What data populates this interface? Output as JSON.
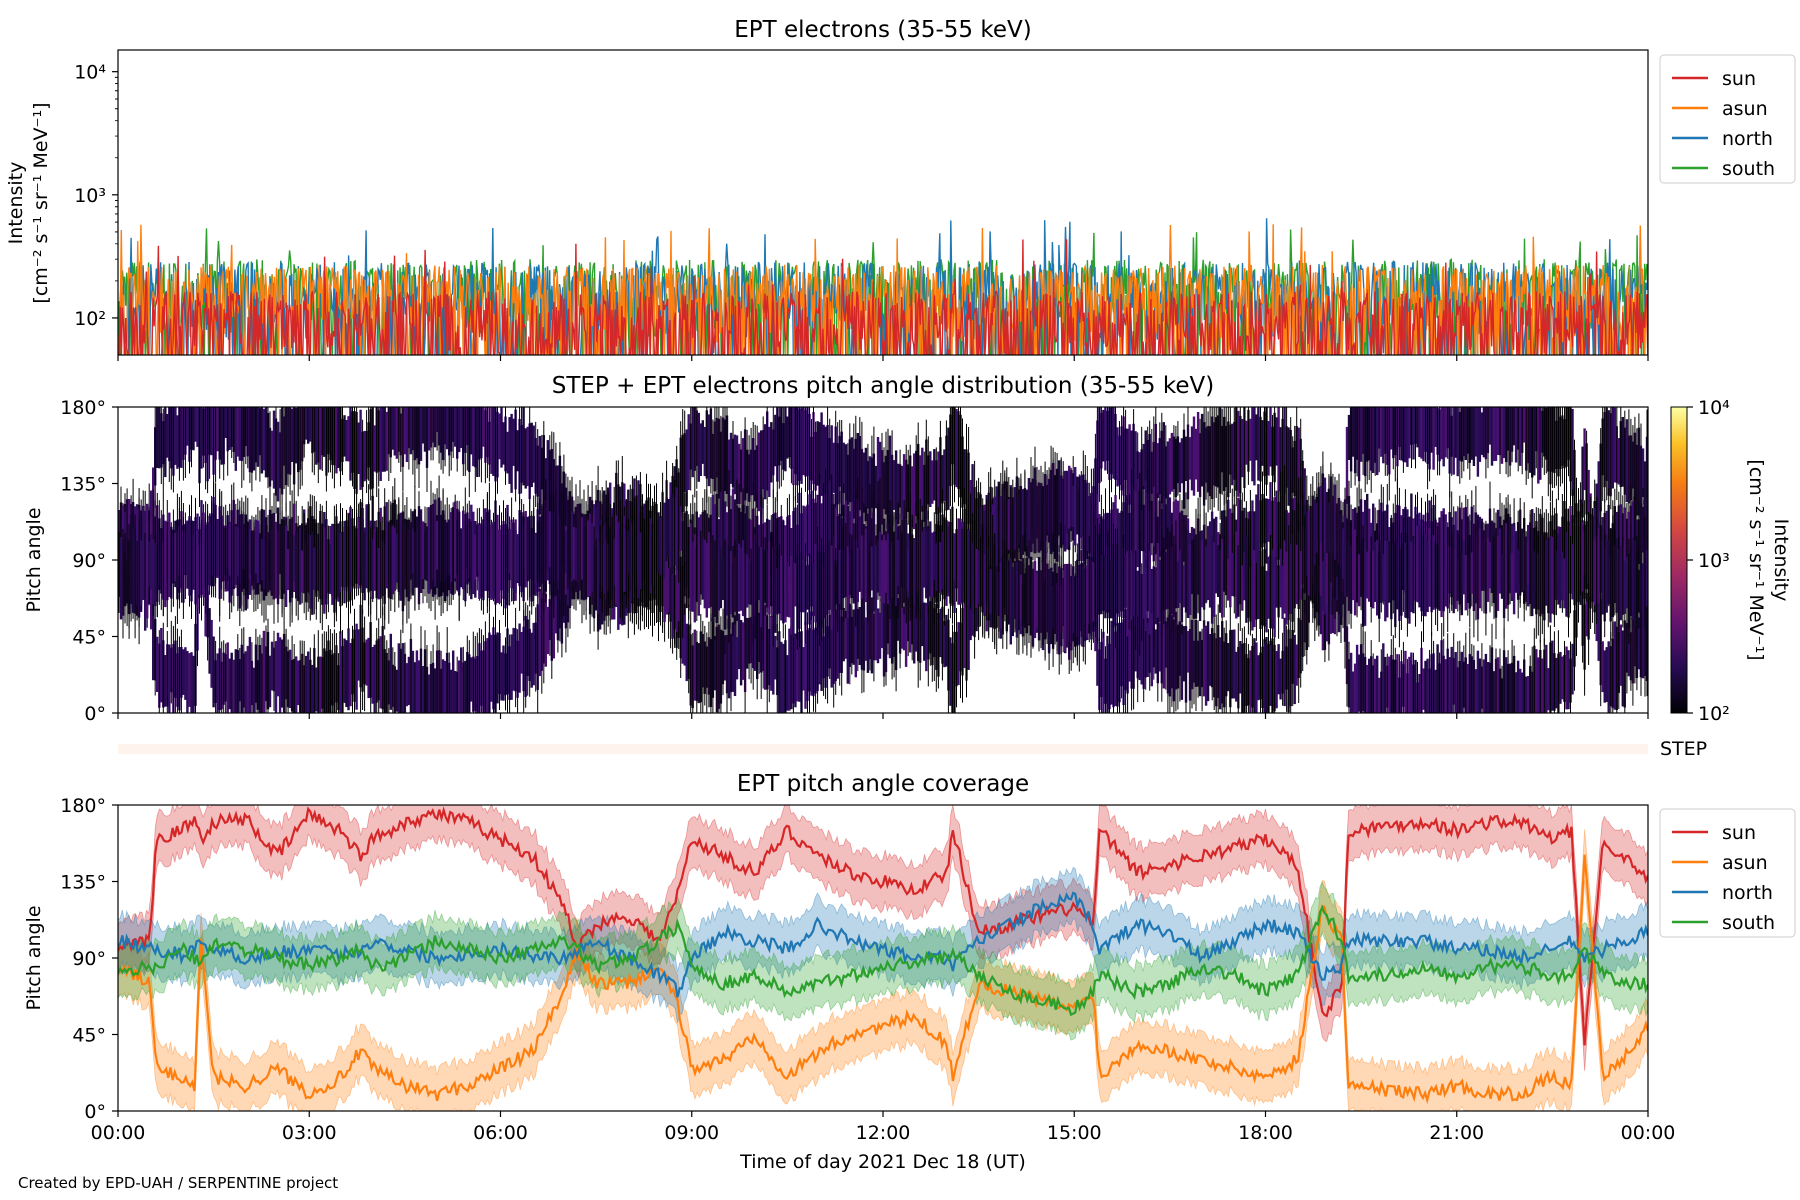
{
  "figure": {
    "credit": "Created by EPD-UAH / SERPENTINE project",
    "xlabel": "Time of day 2021 Dec 18 (UT)",
    "xticks": [
      "00:00",
      "03:00",
      "06:00",
      "09:00",
      "12:00",
      "15:00",
      "18:00",
      "21:00",
      "00:00"
    ],
    "colors": {
      "sun": "#d62728",
      "asun": "#ff7f0e",
      "north": "#1f77b4",
      "south": "#2ca02c"
    }
  },
  "chart_data": [
    {
      "type": "line",
      "title": "EPT electrons (35-55 keV)",
      "ylabel_line1": "Intensity",
      "ylabel_line2": "[cm⁻² s⁻¹ sr⁻¹ MeV⁻¹]",
      "yscale": "log",
      "ylim": [
        50,
        15000
      ],
      "yticks": [
        {
          "value": 100,
          "label": "10²"
        },
        {
          "value": 1000,
          "label": "10³"
        },
        {
          "value": 10000,
          "label": "10⁴"
        }
      ],
      "xlim_hours": [
        0,
        24
      ],
      "legend": [
        "sun",
        "asun",
        "north",
        "south"
      ],
      "legend_position": "upper right, outside",
      "series": [
        {
          "name": "south",
          "baseline": 200,
          "peak_max": 550
        },
        {
          "name": "north",
          "baseline": 190,
          "peak_max": 650
        },
        {
          "name": "asun",
          "baseline": 180,
          "peak_max": 640
        },
        {
          "name": "sun",
          "baseline": 110,
          "peak_max": 450
        }
      ]
    },
    {
      "type": "heatmap",
      "title": "STEP + EPT electrons pitch angle distribution (35-55 keV)",
      "ylabel": "Pitch angle",
      "ylim": [
        0,
        180
      ],
      "yticks": [
        "0°",
        "45°",
        "90°",
        "135°",
        "180°"
      ],
      "colorbar": {
        "label_line1": "Intensity",
        "label_line2": "[cm⁻² s⁻¹ sr⁻¹ MeV⁻¹]",
        "scale": "log",
        "range": [
          100,
          10000
        ],
        "ticks": [
          "10²",
          "10³",
          "10⁴"
        ],
        "colormap": "inferno"
      },
      "step_strip_label": "STEP"
    },
    {
      "type": "line",
      "title": "EPT pitch angle coverage",
      "ylabel": "Pitch angle",
      "ylim": [
        0,
        180
      ],
      "yticks": [
        "0°",
        "45°",
        "90°",
        "135°",
        "180°"
      ],
      "xlim_hours": [
        0,
        24
      ],
      "legend": [
        "sun",
        "asun",
        "north",
        "south"
      ],
      "legend_position": "upper right, outside",
      "band_halfwidth_deg": 15,
      "x_hours": [
        0,
        0.5,
        0.6,
        1.0,
        1.2,
        1.3,
        1.5,
        2.0,
        2.5,
        3.0,
        3.5,
        3.8,
        4.0,
        4.5,
        5.0,
        5.5,
        6.0,
        6.5,
        7.0,
        7.2,
        7.5,
        8.0,
        8.5,
        8.8,
        9.0,
        9.5,
        10.0,
        10.5,
        11.0,
        11.5,
        12.0,
        12.5,
        13.0,
        13.1,
        13.5,
        14.0,
        14.5,
        15.0,
        15.3,
        15.4,
        16.0,
        16.5,
        17.0,
        17.5,
        18.0,
        18.5,
        18.9,
        19.2,
        19.3,
        20.0,
        20.5,
        21.0,
        21.5,
        22.0,
        22.5,
        22.8,
        23.0,
        23.3,
        23.6,
        24.0
      ],
      "series": [
        {
          "name": "sun",
          "values": [
            95,
            100,
            160,
            165,
            172,
            160,
            170,
            172,
            150,
            175,
            165,
            150,
            160,
            170,
            175,
            170,
            160,
            150,
            120,
            95,
            110,
            115,
            100,
            130,
            160,
            150,
            140,
            165,
            150,
            140,
            135,
            130,
            140,
            165,
            105,
            110,
            115,
            120,
            110,
            165,
            140,
            145,
            150,
            155,
            160,
            145,
            55,
            75,
            165,
            168,
            170,
            165,
            170,
            170,
            160,
            165,
            40,
            160,
            150,
            135
          ]
        },
        {
          "name": "asun",
          "values": [
            85,
            75,
            25,
            20,
            15,
            100,
            20,
            15,
            25,
            10,
            20,
            35,
            25,
            15,
            10,
            15,
            25,
            35,
            70,
            95,
            75,
            75,
            85,
            60,
            25,
            30,
            45,
            20,
            35,
            45,
            50,
            55,
            40,
            20,
            75,
            70,
            65,
            60,
            70,
            20,
            40,
            35,
            30,
            25,
            20,
            30,
            120,
            100,
            15,
            12,
            10,
            15,
            10,
            10,
            20,
            15,
            150,
            20,
            30,
            50
          ]
        },
        {
          "name": "north",
          "values": [
            100,
            95,
            95,
            92,
            95,
            100,
            95,
            90,
            93,
            95,
            92,
            95,
            100,
            95,
            90,
            93,
            95,
            92,
            90,
            95,
            100,
            90,
            80,
            70,
            90,
            105,
            100,
            95,
            110,
            100,
            95,
            90,
            90,
            85,
            100,
            110,
            120,
            125,
            110,
            95,
            110,
            105,
            90,
            100,
            110,
            105,
            80,
            85,
            100,
            100,
            100,
            95,
            95,
            90,
            95,
            100,
            90,
            95,
            100,
            105
          ]
        },
        {
          "name": "south",
          "values": [
            80,
            85,
            85,
            95,
            90,
            85,
            100,
            95,
            90,
            85,
            90,
            95,
            85,
            90,
            100,
            95,
            90,
            95,
            100,
            95,
            85,
            90,
            100,
            110,
            85,
            75,
            80,
            70,
            75,
            80,
            85,
            88,
            90,
            95,
            80,
            70,
            65,
            60,
            70,
            80,
            70,
            75,
            85,
            80,
            70,
            80,
            120,
            100,
            80,
            80,
            85,
            80,
            85,
            85,
            80,
            80,
            95,
            80,
            75,
            75
          ]
        }
      ]
    }
  ]
}
